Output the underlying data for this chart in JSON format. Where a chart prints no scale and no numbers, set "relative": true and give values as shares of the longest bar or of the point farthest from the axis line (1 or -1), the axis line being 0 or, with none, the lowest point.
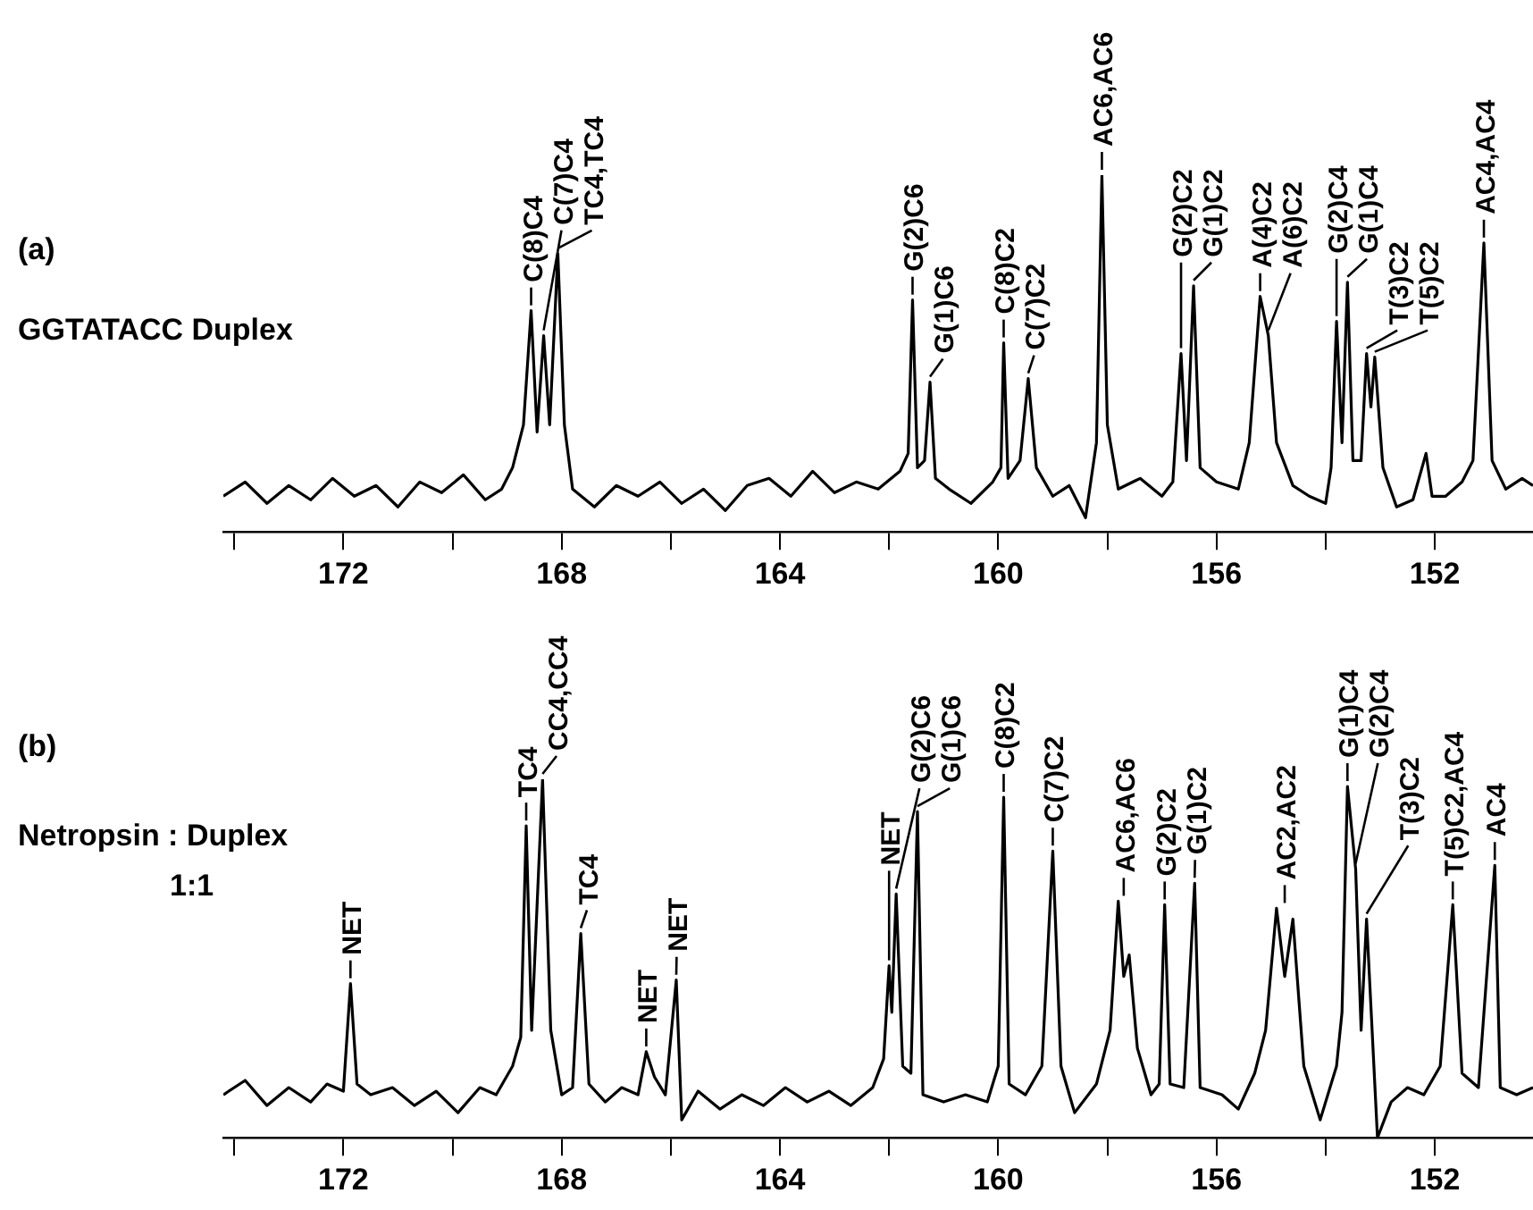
{
  "chart_data": [
    {
      "type": "line",
      "title": "(a)",
      "subtitle": "GGTATACC Duplex",
      "color": "#000000",
      "marker": "none",
      "relative": true,
      "xlim": [
        174.2,
        150.2
      ],
      "xticks": [
        {
          "value": 174,
          "label": null
        },
        172,
        {
          "value": 170,
          "label": null
        },
        168,
        {
          "value": 166,
          "label": null
        },
        164,
        {
          "value": 162,
          "label": null
        },
        160,
        {
          "value": 158,
          "label": null
        },
        156,
        {
          "value": 154,
          "label": null
        },
        152
      ],
      "x": [
        174.2,
        173.8,
        173.4,
        173.0,
        172.6,
        172.2,
        171.8,
        171.4,
        171.0,
        170.6,
        170.2,
        169.8,
        169.4,
        169.1,
        168.9,
        168.7,
        168.56,
        168.45,
        168.33,
        168.22,
        168.07,
        167.95,
        167.8,
        167.4,
        167.0,
        166.6,
        166.2,
        165.8,
        165.4,
        165.0,
        164.6,
        164.2,
        163.8,
        163.4,
        163.0,
        162.6,
        162.2,
        161.8,
        161.65,
        161.57,
        161.48,
        161.35,
        161.25,
        161.15,
        160.9,
        160.5,
        160.1,
        159.95,
        159.9,
        159.82,
        159.6,
        159.45,
        159.3,
        159.0,
        158.7,
        158.4,
        158.2,
        158.1,
        158.0,
        157.8,
        157.4,
        157.0,
        156.8,
        156.65,
        156.55,
        156.42,
        156.3,
        156.0,
        155.6,
        155.4,
        155.2,
        155.05,
        154.9,
        154.6,
        154.3,
        154.0,
        153.9,
        153.8,
        153.7,
        153.6,
        153.5,
        153.35,
        153.25,
        153.17,
        153.1,
        152.95,
        152.7,
        152.4,
        152.16,
        152.05,
        151.8,
        151.5,
        151.3,
        151.1,
        150.95,
        150.7,
        150.4,
        150.2
      ],
      "values": [
        0.1,
        0.14,
        0.08,
        0.13,
        0.09,
        0.15,
        0.1,
        0.13,
        0.07,
        0.14,
        0.11,
        0.16,
        0.09,
        0.12,
        0.18,
        0.3,
        0.62,
        0.28,
        0.55,
        0.3,
        0.78,
        0.3,
        0.12,
        0.07,
        0.13,
        0.1,
        0.14,
        0.08,
        0.12,
        0.06,
        0.13,
        0.15,
        0.1,
        0.17,
        0.11,
        0.14,
        0.12,
        0.17,
        0.22,
        0.65,
        0.18,
        0.2,
        0.42,
        0.15,
        0.12,
        0.08,
        0.14,
        0.18,
        0.53,
        0.15,
        0.2,
        0.43,
        0.18,
        0.1,
        0.13,
        0.04,
        0.25,
        1.0,
        0.3,
        0.12,
        0.15,
        0.1,
        0.14,
        0.5,
        0.2,
        0.69,
        0.18,
        0.14,
        0.12,
        0.25,
        0.66,
        0.55,
        0.25,
        0.13,
        0.1,
        0.08,
        0.18,
        0.59,
        0.25,
        0.7,
        0.2,
        0.2,
        0.5,
        0.35,
        0.49,
        0.18,
        0.07,
        0.09,
        0.22,
        0.1,
        0.1,
        0.14,
        0.2,
        0.81,
        0.2,
        0.12,
        0.15,
        0.13
      ],
      "annotations": [
        {
          "text": "C(8)C4",
          "x": 168.56,
          "y": 0.62
        },
        {
          "text": "C(7)C4",
          "x": 168.33,
          "y": 0.55
        },
        {
          "text": "TC4,TC4",
          "x": 168.07,
          "y": 0.78
        },
        {
          "text": "G(2)C6",
          "x": 161.57,
          "y": 0.65
        },
        {
          "text": "G(1)C6",
          "x": 161.25,
          "y": 0.42
        },
        {
          "text": "C(8)C2",
          "x": 159.9,
          "y": 0.53
        },
        {
          "text": "C(7)C2",
          "x": 159.45,
          "y": 0.43
        },
        {
          "text": "AC6,AC6",
          "x": 158.1,
          "y": 1.0
        },
        {
          "text": "G(2)C2",
          "x": 156.65,
          "y": 0.5
        },
        {
          "text": "G(1)C2",
          "x": 156.42,
          "y": 0.69
        },
        {
          "text": "A(4)C2",
          "x": 155.2,
          "y": 0.66
        },
        {
          "text": "A(6)C2",
          "x": 155.05,
          "y": 0.55
        },
        {
          "text": "G(2)C4",
          "x": 153.8,
          "y": 0.59
        },
        {
          "text": "G(1)C4",
          "x": 153.6,
          "y": 0.7
        },
        {
          "text": "T(3)C2",
          "x": 153.25,
          "y": 0.5
        },
        {
          "text": "T(5)C2",
          "x": 153.1,
          "y": 0.49
        },
        {
          "text": "AC4,AC4",
          "x": 151.1,
          "y": 0.81
        }
      ]
    },
    {
      "type": "line",
      "title": "(b)",
      "subtitle": "Netropsin : Duplex",
      "color": "#000000",
      "marker": "none",
      "relative": true,
      "xlim": [
        174.2,
        150.2
      ],
      "xticks": [
        {
          "value": 174,
          "label": null
        },
        172,
        {
          "value": 170,
          "label": null
        },
        168,
        {
          "value": 166,
          "label": null
        },
        164,
        {
          "value": 162,
          "label": null
        },
        160,
        {
          "value": 158,
          "label": null
        },
        156,
        {
          "value": 154,
          "label": null
        },
        152
      ],
      "x": [
        174.2,
        173.8,
        173.4,
        173.0,
        172.6,
        172.3,
        172.0,
        171.87,
        171.75,
        171.5,
        171.1,
        170.7,
        170.3,
        169.9,
        169.5,
        169.2,
        168.9,
        168.75,
        168.65,
        168.55,
        168.35,
        168.2,
        168.0,
        167.8,
        167.65,
        167.5,
        167.2,
        166.9,
        166.6,
        166.45,
        166.3,
        166.1,
        165.9,
        165.8,
        165.5,
        165.1,
        164.7,
        164.3,
        163.9,
        163.5,
        163.1,
        162.7,
        162.3,
        162.1,
        162.0,
        161.95,
        161.87,
        161.75,
        161.6,
        161.48,
        161.38,
        161.0,
        160.6,
        160.2,
        160.0,
        159.9,
        159.8,
        159.5,
        159.2,
        159.0,
        158.85,
        158.6,
        158.2,
        157.95,
        157.8,
        157.7,
        157.6,
        157.45,
        157.2,
        157.05,
        156.95,
        156.85,
        156.6,
        156.4,
        156.3,
        155.9,
        155.6,
        155.3,
        155.1,
        154.9,
        154.75,
        154.6,
        154.4,
        154.1,
        153.8,
        153.7,
        153.6,
        153.45,
        153.35,
        153.25,
        153.05,
        152.8,
        152.5,
        152.2,
        151.9,
        151.67,
        151.5,
        151.2,
        150.9,
        150.8,
        150.5,
        150.2
      ],
      "values": [
        0.12,
        0.16,
        0.09,
        0.14,
        0.1,
        0.15,
        0.13,
        0.43,
        0.15,
        0.12,
        0.14,
        0.09,
        0.13,
        0.07,
        0.14,
        0.12,
        0.2,
        0.28,
        0.87,
        0.3,
        1.0,
        0.3,
        0.12,
        0.14,
        0.57,
        0.15,
        0.1,
        0.14,
        0.12,
        0.24,
        0.17,
        0.12,
        0.44,
        0.05,
        0.13,
        0.08,
        0.12,
        0.09,
        0.14,
        0.1,
        0.13,
        0.09,
        0.14,
        0.22,
        0.48,
        0.35,
        0.68,
        0.2,
        0.18,
        0.91,
        0.12,
        0.1,
        0.12,
        0.1,
        0.2,
        0.95,
        0.15,
        0.12,
        0.2,
        0.8,
        0.2,
        0.07,
        0.15,
        0.3,
        0.66,
        0.45,
        0.51,
        0.25,
        0.12,
        0.15,
        0.65,
        0.15,
        0.14,
        0.71,
        0.14,
        0.12,
        0.08,
        0.18,
        0.3,
        0.64,
        0.45,
        0.61,
        0.2,
        0.05,
        0.2,
        0.35,
        0.98,
        0.75,
        0.3,
        0.61,
        0,
        0.1,
        0.14,
        0.12,
        0.2,
        0.65,
        0.18,
        0.14,
        0.76,
        0.14,
        0.12,
        0.14
      ],
      "annotations": [
        "1:1",
        {
          "text": "NET",
          "x": 171.87,
          "y": 0.43
        },
        {
          "text": "TC4",
          "x": 168.65,
          "y": 0.87
        },
        {
          "text": "CC4,CC4",
          "x": 168.35,
          "y": 1.0
        },
        {
          "text": "TC4",
          "x": 167.65,
          "y": 0.57
        },
        {
          "text": "NET",
          "x": 166.45,
          "y": 0.24
        },
        {
          "text": "NET",
          "x": 165.9,
          "y": 0.44
        },
        {
          "text": "NET",
          "x": 162.0,
          "y": 0.48
        },
        {
          "text": "G(2)C6",
          "x": 161.87,
          "y": 0.68
        },
        {
          "text": "G(1)C6",
          "x": 161.48,
          "y": 0.91
        },
        {
          "text": "C(8)C2",
          "x": 159.9,
          "y": 0.95
        },
        {
          "text": "C(7)C2",
          "x": 159.0,
          "y": 0.8
        },
        {
          "text": "AC6,AC6",
          "x": 157.7,
          "y": 0.66
        },
        {
          "text": "G(2)C2",
          "x": 156.95,
          "y": 0.65
        },
        {
          "text": "G(1)C2",
          "x": 156.4,
          "y": 0.71
        },
        {
          "text": "AC2,AC2",
          "x": 154.75,
          "y": 0.64
        },
        {
          "text": "G(1)C4",
          "x": 153.6,
          "y": 0.98
        },
        {
          "text": "G(2)C4",
          "x": 153.45,
          "y": 0.75
        },
        {
          "text": "T(3)C2",
          "x": 153.25,
          "y": 0.61
        },
        {
          "text": "T(5)C2,AC4",
          "x": 151.67,
          "y": 0.65
        },
        {
          "text": "AC4",
          "x": 150.9,
          "y": 0.76
        }
      ]
    }
  ]
}
